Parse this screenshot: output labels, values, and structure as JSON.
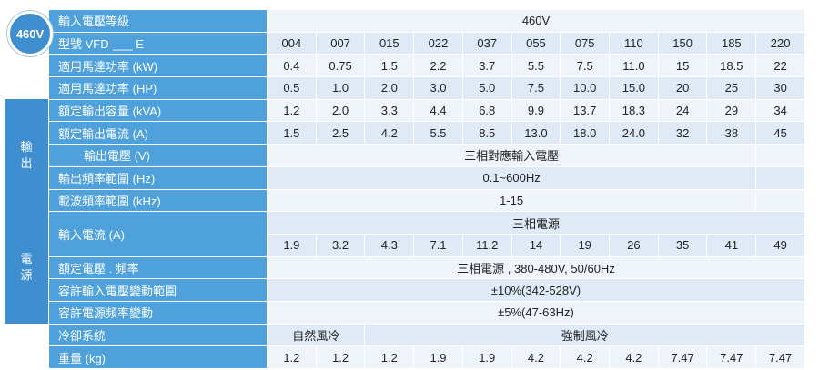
{
  "badge": "460V",
  "groups": [
    {
      "label": "輸出",
      "start": 4,
      "rows": 5
    },
    {
      "label": "電源",
      "start": 9,
      "rows": 4
    }
  ],
  "rows": [
    {
      "label": "輸入電壓等級",
      "values": [
        "460V"
      ]
    },
    {
      "label": "型號 VFD-___ E",
      "values": [
        "004",
        "007",
        "015",
        "022",
        "037",
        "055",
        "075",
        "110",
        "150",
        "185",
        "220"
      ]
    },
    {
      "label": "適用馬達功率 (kW)",
      "values": [
        "0.4",
        "0.75",
        "1.5",
        "2.2",
        "3.7",
        "5.5",
        "7.5",
        "11.0",
        "15",
        "18.5",
        "22"
      ]
    },
    {
      "label": "適用馬達功率 (HP)",
      "values": [
        "0.5",
        "1.0",
        "2.0",
        "3.0",
        "5.0",
        "7.5",
        "10.0",
        "15.0",
        "20",
        "25",
        "30"
      ]
    },
    {
      "label": "額定輸出容量 (kVA)",
      "values": [
        "1.2",
        "2.0",
        "3.3",
        "4.4",
        "6.8",
        "9.9",
        "13.7",
        "18.3",
        "24",
        "29",
        "34"
      ]
    },
    {
      "label": "額定輸出電流 (A)",
      "values": [
        "1.5",
        "2.5",
        "4.2",
        "5.5",
        "8.5",
        "13.0",
        "18.0",
        "24.0",
        "32",
        "38",
        "45"
      ]
    },
    {
      "label": "輸出電壓 (V)",
      "values": [
        "三相對應輸入電壓"
      ]
    },
    {
      "label": "輸出頻率範圍 (Hz)",
      "values": [
        "0.1~600Hz"
      ]
    },
    {
      "label": "載波頻率範圍 (kHz)",
      "values": [
        "1-15"
      ]
    },
    {
      "label": "輸入電流 (A)",
      "note": "三相電源",
      "values": [
        "1.9",
        "3.2",
        "4.3",
        "7.1",
        "11.2",
        "14",
        "19",
        "26",
        "35",
        "41",
        "49"
      ]
    },
    {
      "label": "額定電壓 . 頻率",
      "values": [
        "三相電源 , 380-480V, 50/60Hz"
      ]
    },
    {
      "label": "容許輸入電壓變動範圍",
      "values": [
        "±10%(342-528V)"
      ]
    },
    {
      "label": "容許電源頻率變動",
      "values": [
        "±5%(47-63Hz)"
      ]
    },
    {
      "label": "冷卻系統",
      "values": [
        "自然風冷",
        "強制風冷"
      ]
    },
    {
      "label": "重量 (kg)",
      "values": [
        "1.2",
        "1.2",
        "1.2",
        "1.9",
        "1.9",
        "4.2",
        "4.2",
        "4.2",
        "7.47",
        "7.47",
        "7.47"
      ]
    }
  ]
}
